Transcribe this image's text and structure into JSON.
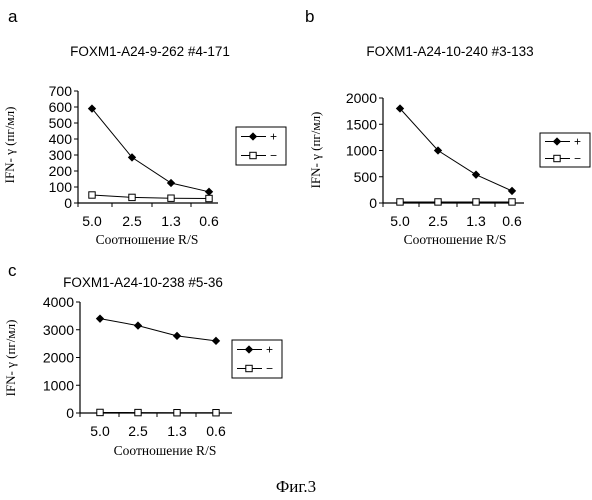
{
  "figure_caption": "Фиг.3",
  "chart_data": [
    {
      "type": "line",
      "panel_label": "a",
      "title": "FOXM1-A24-9-262 #4-171",
      "xlabel": "Соотношение R/S",
      "ylabel": "IFN- γ (пг/мл)",
      "categories": [
        "5.0",
        "2.5",
        "1.3",
        "0.6"
      ],
      "ylim": [
        0,
        700
      ],
      "yticks": [
        0,
        100,
        200,
        300,
        400,
        500,
        600,
        700
      ],
      "legend_position": "right",
      "series": [
        {
          "name": "+",
          "marker": "diamond",
          "values": [
            590,
            285,
            125,
            70
          ]
        },
        {
          "name": "−",
          "marker": "square",
          "values": [
            50,
            35,
            30,
            28
          ]
        }
      ]
    },
    {
      "type": "line",
      "panel_label": "b",
      "title": "FOXM1-A24-10-240 #3-133",
      "xlabel": "Соотношение R/S",
      "ylabel": "IFN- γ (пг/мл)",
      "categories": [
        "5.0",
        "2.5",
        "1.3",
        "0.6"
      ],
      "ylim": [
        0,
        2000
      ],
      "yticks": [
        0,
        500,
        1000,
        1500,
        2000
      ],
      "legend_position": "right",
      "series": [
        {
          "name": "+",
          "marker": "diamond",
          "values": [
            1800,
            1000,
            540,
            230
          ]
        },
        {
          "name": "−",
          "marker": "square",
          "values": [
            20,
            20,
            20,
            20
          ]
        }
      ]
    },
    {
      "type": "line",
      "panel_label": "c",
      "title": "FOXM1-A24-10-238 #5-36",
      "xlabel": "Соотношение R/S",
      "ylabel": "IFN- γ (пг/мл)",
      "categories": [
        "5.0",
        "2.5",
        "1.3",
        "0.6"
      ],
      "ylim": [
        0,
        4000
      ],
      "yticks": [
        0,
        1000,
        2000,
        3000,
        4000
      ],
      "legend_position": "right",
      "series": [
        {
          "name": "+",
          "marker": "diamond",
          "values": [
            3400,
            3150,
            2780,
            2600
          ]
        },
        {
          "name": "−",
          "marker": "square",
          "values": [
            20,
            15,
            10,
            10
          ]
        }
      ]
    }
  ]
}
